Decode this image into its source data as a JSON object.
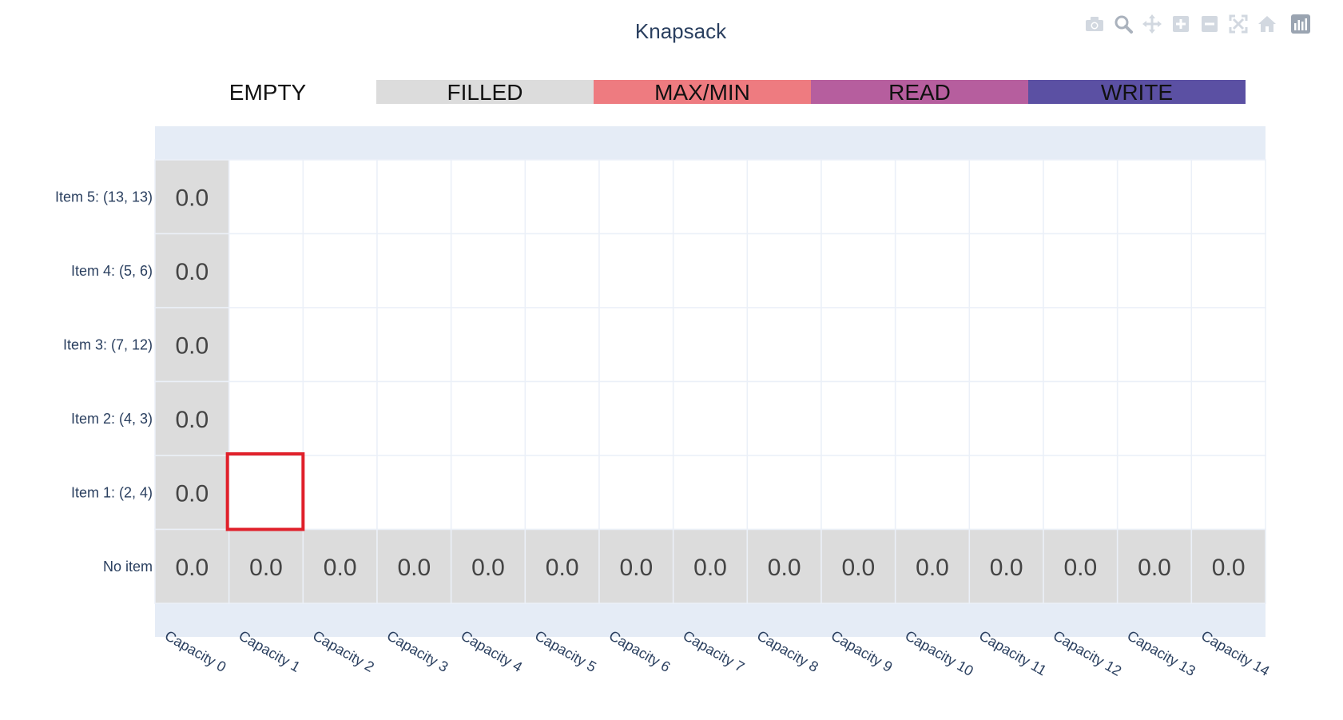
{
  "chart_data": {
    "type": "heatmap",
    "title": "Knapsack",
    "legend": {
      "placement": "top",
      "entries": [
        {
          "label": "EMPTY",
          "color": "#ffffff"
        },
        {
          "label": "FILLED",
          "color": "#dcdcdc"
        },
        {
          "label": "MAX/MIN",
          "color": "#ee7b80"
        },
        {
          "label": "READ",
          "color": "#b65e9e"
        },
        {
          "label": "WRITE",
          "color": "#5b50a3"
        }
      ]
    },
    "x_categories": [
      "Capacity 0",
      "Capacity 1",
      "Capacity 2",
      "Capacity 3",
      "Capacity 4",
      "Capacity 5",
      "Capacity 6",
      "Capacity 7",
      "Capacity 8",
      "Capacity 9",
      "Capacity 10",
      "Capacity 11",
      "Capacity 12",
      "Capacity 13",
      "Capacity 14"
    ],
    "y_categories_top_to_bottom": [
      "Item 5: (13, 13)",
      "Item 4: (5, 6)",
      "Item 3: (7, 12)",
      "Item 2: (4, 3)",
      "Item 1: (2, 4)",
      "No item"
    ],
    "cells": [
      [
        "0.0",
        null,
        null,
        null,
        null,
        null,
        null,
        null,
        null,
        null,
        null,
        null,
        null,
        null,
        null
      ],
      [
        "0.0",
        null,
        null,
        null,
        null,
        null,
        null,
        null,
        null,
        null,
        null,
        null,
        null,
        null,
        null
      ],
      [
        "0.0",
        null,
        null,
        null,
        null,
        null,
        null,
        null,
        null,
        null,
        null,
        null,
        null,
        null,
        null
      ],
      [
        "0.0",
        null,
        null,
        null,
        null,
        null,
        null,
        null,
        null,
        null,
        null,
        null,
        null,
        null,
        null
      ],
      [
        "0.0",
        null,
        null,
        null,
        null,
        null,
        null,
        null,
        null,
        null,
        null,
        null,
        null,
        null,
        null
      ],
      [
        "0.0",
        "0.0",
        "0.0",
        "0.0",
        "0.0",
        "0.0",
        "0.0",
        "0.0",
        "0.0",
        "0.0",
        "0.0",
        "0.0",
        "0.0",
        "0.0",
        "0.0"
      ]
    ],
    "states": [
      [
        "FILLED",
        "EMPTY",
        "EMPTY",
        "EMPTY",
        "EMPTY",
        "EMPTY",
        "EMPTY",
        "EMPTY",
        "EMPTY",
        "EMPTY",
        "EMPTY",
        "EMPTY",
        "EMPTY",
        "EMPTY",
        "EMPTY"
      ],
      [
        "FILLED",
        "EMPTY",
        "EMPTY",
        "EMPTY",
        "EMPTY",
        "EMPTY",
        "EMPTY",
        "EMPTY",
        "EMPTY",
        "EMPTY",
        "EMPTY",
        "EMPTY",
        "EMPTY",
        "EMPTY",
        "EMPTY"
      ],
      [
        "FILLED",
        "EMPTY",
        "EMPTY",
        "EMPTY",
        "EMPTY",
        "EMPTY",
        "EMPTY",
        "EMPTY",
        "EMPTY",
        "EMPTY",
        "EMPTY",
        "EMPTY",
        "EMPTY",
        "EMPTY",
        "EMPTY"
      ],
      [
        "FILLED",
        "EMPTY",
        "EMPTY",
        "EMPTY",
        "EMPTY",
        "EMPTY",
        "EMPTY",
        "EMPTY",
        "EMPTY",
        "EMPTY",
        "EMPTY",
        "EMPTY",
        "EMPTY",
        "EMPTY",
        "EMPTY"
      ],
      [
        "FILLED",
        "EMPTY",
        "EMPTY",
        "EMPTY",
        "EMPTY",
        "EMPTY",
        "EMPTY",
        "EMPTY",
        "EMPTY",
        "EMPTY",
        "EMPTY",
        "EMPTY",
        "EMPTY",
        "EMPTY",
        "EMPTY"
      ],
      [
        "FILLED",
        "FILLED",
        "FILLED",
        "FILLED",
        "FILLED",
        "FILLED",
        "FILLED",
        "FILLED",
        "FILLED",
        "FILLED",
        "FILLED",
        "FILLED",
        "FILLED",
        "FILLED",
        "FILLED"
      ]
    ],
    "highlight": {
      "row": "Item 1: (2, 4)",
      "column": "Capacity 1",
      "color": "#e0202a"
    },
    "colors": {
      "title": "#2a3f5f",
      "plot_band": "#e5ecf6",
      "grid": "#ebf0f8",
      "value_text": "#444444"
    }
  },
  "modebar": {
    "icons": [
      "camera-icon",
      "zoom-icon",
      "pan-icon",
      "zoom-in-icon",
      "zoom-out-icon",
      "autoscale-icon",
      "home-icon",
      "plotly-logo-icon"
    ]
  }
}
